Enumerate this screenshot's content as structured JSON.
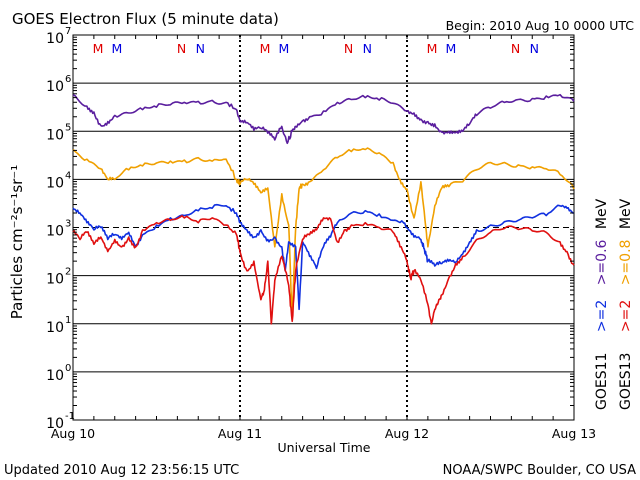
{
  "chart_data": {
    "type": "line",
    "title": "GOES Electron Flux (5 minute data)",
    "begin_label": "Begin: 2010 Aug 10 0000 UTC",
    "xlabel": "Universal Time",
    "ylabel": "Particles cm⁻²s⁻¹sr⁻¹",
    "yscale": "log",
    "ylim_exp": [
      -1,
      7
    ],
    "y_ticks": [
      {
        "base": "10",
        "exp": "7"
      },
      {
        "base": "10",
        "exp": "6"
      },
      {
        "base": "10",
        "exp": "5"
      },
      {
        "base": "10",
        "exp": "4"
      },
      {
        "base": "10",
        "exp": "3"
      },
      {
        "base": "10",
        "exp": "2"
      },
      {
        "base": "10",
        "exp": "1"
      },
      {
        "base": "10",
        "exp": "0"
      },
      {
        "base": "10",
        "exp": "-1"
      }
    ],
    "xlim_hours": [
      0,
      72
    ],
    "x_ticks": [
      {
        "hour": 0,
        "label": "Aug 10"
      },
      {
        "hour": 24,
        "label": "Aug 11"
      },
      {
        "hour": 48,
        "label": "Aug 12"
      },
      {
        "hour": 72,
        "label": "Aug 13"
      }
    ],
    "alert_threshold_exp": 3,
    "mn_markers": [
      {
        "hour": 3.6,
        "text": "M",
        "color": "#e00000"
      },
      {
        "hour": 6.3,
        "text": "M",
        "color": "#0000e0"
      },
      {
        "hour": 15.6,
        "text": "N",
        "color": "#e00000"
      },
      {
        "hour": 18.3,
        "text": "N",
        "color": "#0000e0"
      },
      {
        "hour": 27.6,
        "text": "M",
        "color": "#e00000"
      },
      {
        "hour": 30.3,
        "text": "M",
        "color": "#0000e0"
      },
      {
        "hour": 39.6,
        "text": "N",
        "color": "#e00000"
      },
      {
        "hour": 42.3,
        "text": "N",
        "color": "#0000e0"
      },
      {
        "hour": 51.6,
        "text": "M",
        "color": "#e00000"
      },
      {
        "hour": 54.3,
        "text": "M",
        "color": "#0000e0"
      },
      {
        "hour": 63.6,
        "text": "N",
        "color": "#e00000"
      },
      {
        "hour": 66.3,
        "text": "N",
        "color": "#0000e0"
      }
    ],
    "series": [
      {
        "name": "GOES11 >=0.6 MeV",
        "color": "#5a1e9e",
        "log10_points": [
          [
            0,
            5.76
          ],
          [
            2,
            5.52
          ],
          [
            3,
            5.4
          ],
          [
            4,
            5.12
          ],
          [
            5,
            5.2
          ],
          [
            6,
            5.33
          ],
          [
            8,
            5.38
          ],
          [
            10,
            5.45
          ],
          [
            12,
            5.5
          ],
          [
            14,
            5.55
          ],
          [
            16,
            5.6
          ],
          [
            18,
            5.62
          ],
          [
            20,
            5.64
          ],
          [
            22,
            5.6
          ],
          [
            23.5,
            5.45
          ],
          [
            24,
            5.2
          ],
          [
            25,
            5.18
          ],
          [
            26,
            5.02
          ],
          [
            27,
            5.06
          ],
          [
            28,
            4.96
          ],
          [
            29,
            4.82
          ],
          [
            30,
            5.1
          ],
          [
            30.8,
            4.75
          ],
          [
            31.5,
            5.0
          ],
          [
            32,
            5.1
          ],
          [
            33,
            5.22
          ],
          [
            34,
            5.3
          ],
          [
            36,
            5.42
          ],
          [
            38,
            5.6
          ],
          [
            40,
            5.66
          ],
          [
            42,
            5.7
          ],
          [
            44,
            5.65
          ],
          [
            46,
            5.58
          ],
          [
            48,
            5.42
          ],
          [
            49,
            5.38
          ],
          [
            50,
            5.25
          ],
          [
            51,
            5.2
          ],
          [
            52,
            5.15
          ],
          [
            53,
            4.98
          ],
          [
            54,
            5.0
          ],
          [
            55,
            4.97
          ],
          [
            56,
            5.0
          ],
          [
            57,
            5.15
          ],
          [
            58,
            5.33
          ],
          [
            60,
            5.48
          ],
          [
            62,
            5.6
          ],
          [
            64,
            5.66
          ],
          [
            66,
            5.68
          ],
          [
            68,
            5.73
          ],
          [
            70,
            5.76
          ],
          [
            72,
            5.62
          ]
        ]
      },
      {
        "name": "GOES13 >=0.8 MeV",
        "color": "#f0a000",
        "log10_points": [
          [
            0,
            4.62
          ],
          [
            2,
            4.42
          ],
          [
            4,
            4.22
          ],
          [
            5,
            4.0
          ],
          [
            6,
            4.0
          ],
          [
            8,
            4.2
          ],
          [
            10,
            4.28
          ],
          [
            12,
            4.34
          ],
          [
            14,
            4.38
          ],
          [
            16,
            4.4
          ],
          [
            18,
            4.45
          ],
          [
            20,
            4.38
          ],
          [
            22,
            4.42
          ],
          [
            23.5,
            4.0
          ],
          [
            24,
            3.9
          ],
          [
            25,
            4.0
          ],
          [
            26,
            3.9
          ],
          [
            27,
            3.72
          ],
          [
            28,
            3.82
          ],
          [
            29,
            2.6
          ],
          [
            30,
            3.7
          ],
          [
            31,
            3.05
          ],
          [
            31.5,
            1.1
          ],
          [
            32,
            3.0
          ],
          [
            32.5,
            3.8
          ],
          [
            33,
            3.9
          ],
          [
            34,
            3.95
          ],
          [
            36,
            4.2
          ],
          [
            38,
            4.45
          ],
          [
            40,
            4.58
          ],
          [
            42,
            4.62
          ],
          [
            44,
            4.55
          ],
          [
            46,
            4.35
          ],
          [
            47,
            4.0
          ],
          [
            48,
            3.8
          ],
          [
            49,
            3.2
          ],
          [
            50,
            3.95
          ],
          [
            50.7,
            3.0
          ],
          [
            51,
            2.6
          ],
          [
            52,
            3.45
          ],
          [
            53,
            3.82
          ],
          [
            54,
            3.85
          ],
          [
            56,
            3.95
          ],
          [
            58,
            4.2
          ],
          [
            60,
            4.35
          ],
          [
            62,
            4.35
          ],
          [
            64,
            4.3
          ],
          [
            66,
            4.26
          ],
          [
            68,
            4.22
          ],
          [
            70,
            4.1
          ],
          [
            72,
            3.8
          ]
        ]
      },
      {
        "name": "GOES11 >=2 MeV",
        "color": "#1030e0",
        "log10_points": [
          [
            0,
            3.4
          ],
          [
            1,
            3.3
          ],
          [
            2,
            3.1
          ],
          [
            3,
            2.95
          ],
          [
            4,
            3.0
          ],
          [
            5,
            2.75
          ],
          [
            6,
            2.85
          ],
          [
            7,
            2.75
          ],
          [
            8,
            2.9
          ],
          [
            9,
            2.6
          ],
          [
            10,
            2.85
          ],
          [
            12,
            3.05
          ],
          [
            14,
            3.2
          ],
          [
            16,
            3.25
          ],
          [
            18,
            3.35
          ],
          [
            20,
            3.4
          ],
          [
            22,
            3.45
          ],
          [
            23.5,
            3.3
          ],
          [
            24,
            3.1
          ],
          [
            25,
            2.95
          ],
          [
            26,
            2.8
          ],
          [
            27,
            2.95
          ],
          [
            28,
            2.75
          ],
          [
            29,
            2.8
          ],
          [
            30,
            2.6
          ],
          [
            30.5,
            2.1
          ],
          [
            31,
            2.7
          ],
          [
            32,
            2.6
          ],
          [
            32.5,
            1.3
          ],
          [
            33,
            2.7
          ],
          [
            34,
            2.4
          ],
          [
            35,
            2.15
          ],
          [
            36,
            2.6
          ],
          [
            37,
            2.8
          ],
          [
            38,
            3.1
          ],
          [
            40,
            3.3
          ],
          [
            42,
            3.35
          ],
          [
            44,
            3.28
          ],
          [
            46,
            3.15
          ],
          [
            47.5,
            3.1
          ],
          [
            48,
            3.0
          ],
          [
            49,
            2.8
          ],
          [
            50,
            2.75
          ],
          [
            50.5,
            2.55
          ],
          [
            51,
            2.3
          ],
          [
            52,
            2.2
          ],
          [
            53,
            2.25
          ],
          [
            54,
            2.3
          ],
          [
            55,
            2.28
          ],
          [
            56,
            2.45
          ],
          [
            57,
            2.7
          ],
          [
            58,
            2.95
          ],
          [
            60,
            3.05
          ],
          [
            62,
            3.12
          ],
          [
            64,
            3.15
          ],
          [
            66,
            3.2
          ],
          [
            68,
            3.25
          ],
          [
            70,
            3.45
          ],
          [
            71,
            3.4
          ],
          [
            72,
            3.3
          ]
        ]
      },
      {
        "name": "GOES13 >=2 MeV",
        "color": "#e01010",
        "log10_points": [
          [
            0,
            2.9
          ],
          [
            1,
            2.75
          ],
          [
            2,
            2.9
          ],
          [
            3,
            2.65
          ],
          [
            4,
            2.8
          ],
          [
            5,
            2.5
          ],
          [
            6,
            2.75
          ],
          [
            7,
            2.6
          ],
          [
            8,
            2.8
          ],
          [
            9,
            2.6
          ],
          [
            10,
            2.95
          ],
          [
            12,
            3.1
          ],
          [
            14,
            3.15
          ],
          [
            16,
            3.2
          ],
          [
            18,
            3.1
          ],
          [
            20,
            3.2
          ],
          [
            22,
            3.05
          ],
          [
            23.5,
            2.85
          ],
          [
            24,
            2.5
          ],
          [
            25,
            2.1
          ],
          [
            26,
            2.3
          ],
          [
            27,
            1.5
          ],
          [
            27.5,
            1.7
          ],
          [
            28,
            2.3
          ],
          [
            28.5,
            1.0
          ],
          [
            29,
            1.9
          ],
          [
            30,
            2.4
          ],
          [
            31,
            1.8
          ],
          [
            31.5,
            1.05
          ],
          [
            32,
            2.1
          ],
          [
            33,
            2.75
          ],
          [
            34,
            2.85
          ],
          [
            35,
            2.95
          ],
          [
            36,
            3.2
          ],
          [
            37,
            3.18
          ],
          [
            38,
            2.7
          ],
          [
            39,
            2.95
          ],
          [
            40,
            3.05
          ],
          [
            42,
            3.1
          ],
          [
            44,
            3.0
          ],
          [
            46,
            2.9
          ],
          [
            47,
            2.6
          ],
          [
            48,
            2.3
          ],
          [
            48.5,
            1.95
          ],
          [
            49,
            2.1
          ],
          [
            50,
            1.9
          ],
          [
            51,
            1.4
          ],
          [
            51.5,
            1.0
          ],
          [
            52,
            1.3
          ],
          [
            52.5,
            1.45
          ],
          [
            53,
            1.6
          ],
          [
            54,
            1.95
          ],
          [
            55,
            2.25
          ],
          [
            56,
            2.4
          ],
          [
            58,
            2.75
          ],
          [
            60,
            2.9
          ],
          [
            62,
            2.98
          ],
          [
            64,
            2.96
          ],
          [
            66,
            2.93
          ],
          [
            68,
            2.9
          ],
          [
            70,
            2.7
          ],
          [
            71,
            2.5
          ],
          [
            72,
            2.22
          ]
        ]
      }
    ],
    "legend": [
      {
        "sat": "GOES11",
        "channel": ">=2",
        "col_sep": ">=0.6",
        "unit": "MeV",
        "colors": [
          "#1030e0",
          "#5a1e9e"
        ]
      },
      {
        "sat": "GOES13",
        "channel": ">=2",
        "col_sep": ">=0.8",
        "unit": "MeV",
        "colors": [
          "#e01010",
          "#f0a000"
        ]
      }
    ]
  },
  "footer": {
    "updated": "Updated 2010 Aug 12 23:56:15 UTC",
    "credit": "NOAA/SWPC Boulder, CO USA"
  }
}
